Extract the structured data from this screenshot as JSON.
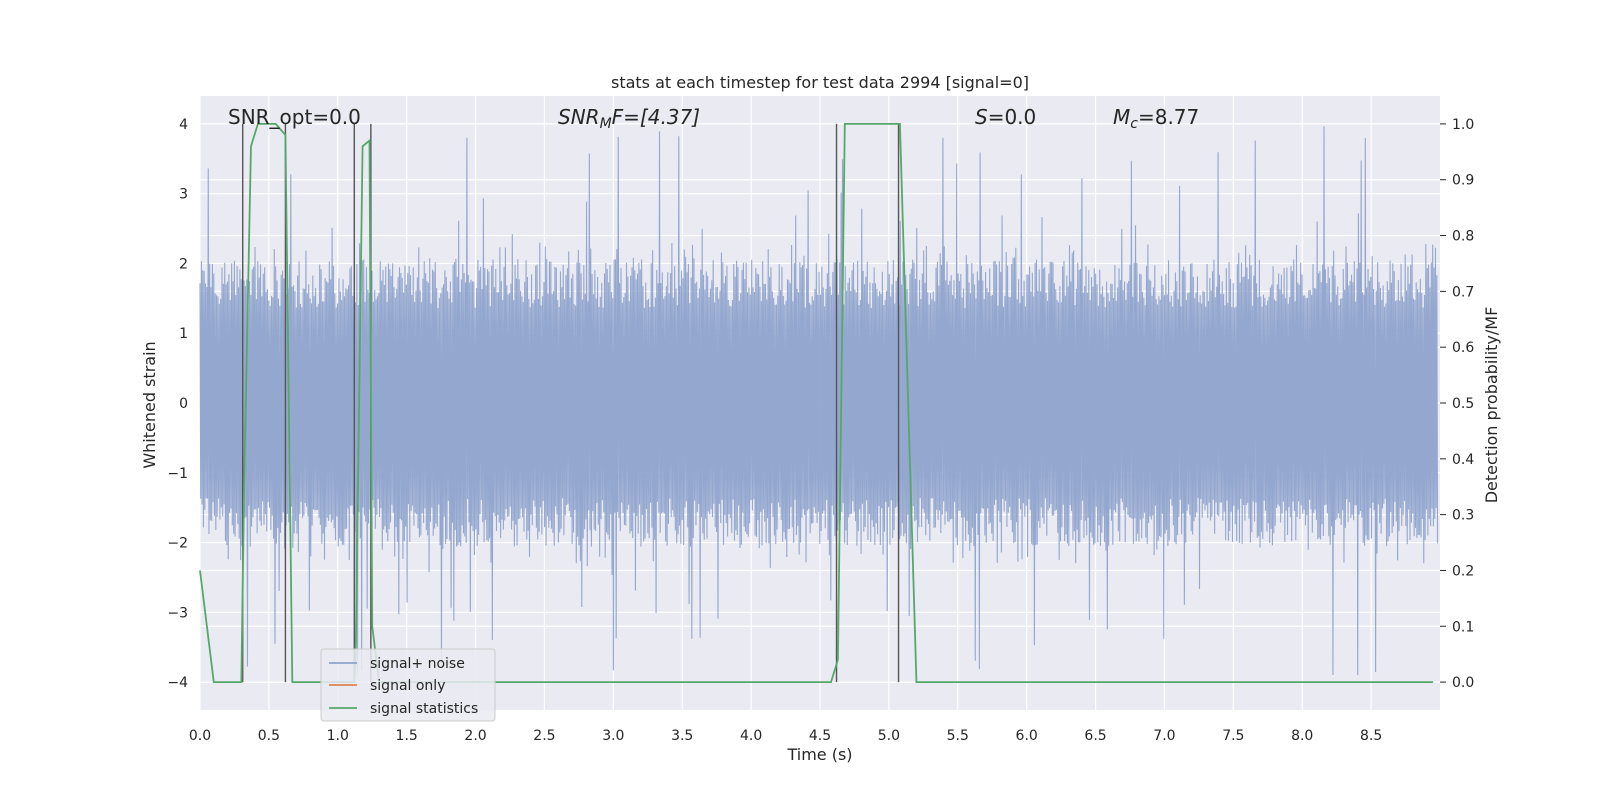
{
  "chart_data": {
    "type": "line",
    "title": "stats at each timestep for test data 2994 [signal=0]",
    "xlabel": "Time (s)",
    "ylabel_left": "Whitened strain",
    "ylabel_right": "Detection probability/MF",
    "xlim": [
      0,
      9.0
    ],
    "ylim_left": [
      -4.4,
      4.4
    ],
    "ylim_right": [
      -0.05,
      1.05
    ],
    "x_ticks": [
      "0.0",
      "0.5",
      "1.0",
      "1.5",
      "2.0",
      "2.5",
      "3.0",
      "3.5",
      "4.0",
      "4.5",
      "5.0",
      "5.5",
      "6.0",
      "6.5",
      "7.0",
      "7.5",
      "8.0",
      "8.5"
    ],
    "y_ticks_left": [
      "−4",
      "−3",
      "−2",
      "−1",
      "0",
      "1",
      "2",
      "3",
      "4"
    ],
    "y_ticks_right": [
      "0.0",
      "0.1",
      "0.2",
      "0.3",
      "0.4",
      "0.5",
      "0.6",
      "0.7",
      "0.8",
      "0.9",
      "1.0"
    ],
    "grid": true,
    "legend_position": "lower-left",
    "annotations": {
      "snr_opt": "SNR_opt=0.0",
      "snr_mf_base": "SNR",
      "snr_mf_sub": "M",
      "snr_mf_rest": "F=[4.37]",
      "s_italic": "S",
      "s_rest": "=0.0",
      "mc_base": "M",
      "mc_sub": "c",
      "mc_rest": "=8.77"
    },
    "series": [
      {
        "name": "signal+ noise",
        "color": "#8fa3cc",
        "envelope": {
          "typical_range": [
            -1.6,
            1.6
          ],
          "peak_max": 4.0,
          "peak_min": -3.9
        }
      },
      {
        "name": "signal only",
        "color": "#dd8452",
        "values": []
      },
      {
        "name": "signal statistics",
        "color": "#55a868",
        "x": [
          0.0,
          0.05,
          0.1,
          0.3,
          0.32,
          0.37,
          0.42,
          0.55,
          0.62,
          0.67,
          0.72,
          1.12,
          1.13,
          1.18,
          1.23,
          1.25,
          1.3,
          4.58,
          4.63,
          4.68,
          5.08,
          5.2,
          8.95
        ],
        "y": [
          0.2,
          0.1,
          0.0,
          0.0,
          0.35,
          0.96,
          1.0,
          1.0,
          0.98,
          0.0,
          0.0,
          0.0,
          0.05,
          0.96,
          0.97,
          0.1,
          0.0,
          0.0,
          0.04,
          1.0,
          1.0,
          0.0,
          0.0
        ]
      }
    ],
    "vertical_lines_x": [
      0.31,
      0.62,
      1.12,
      1.24,
      4.62,
      5.07
    ],
    "vertical_line_color": "#555555"
  }
}
